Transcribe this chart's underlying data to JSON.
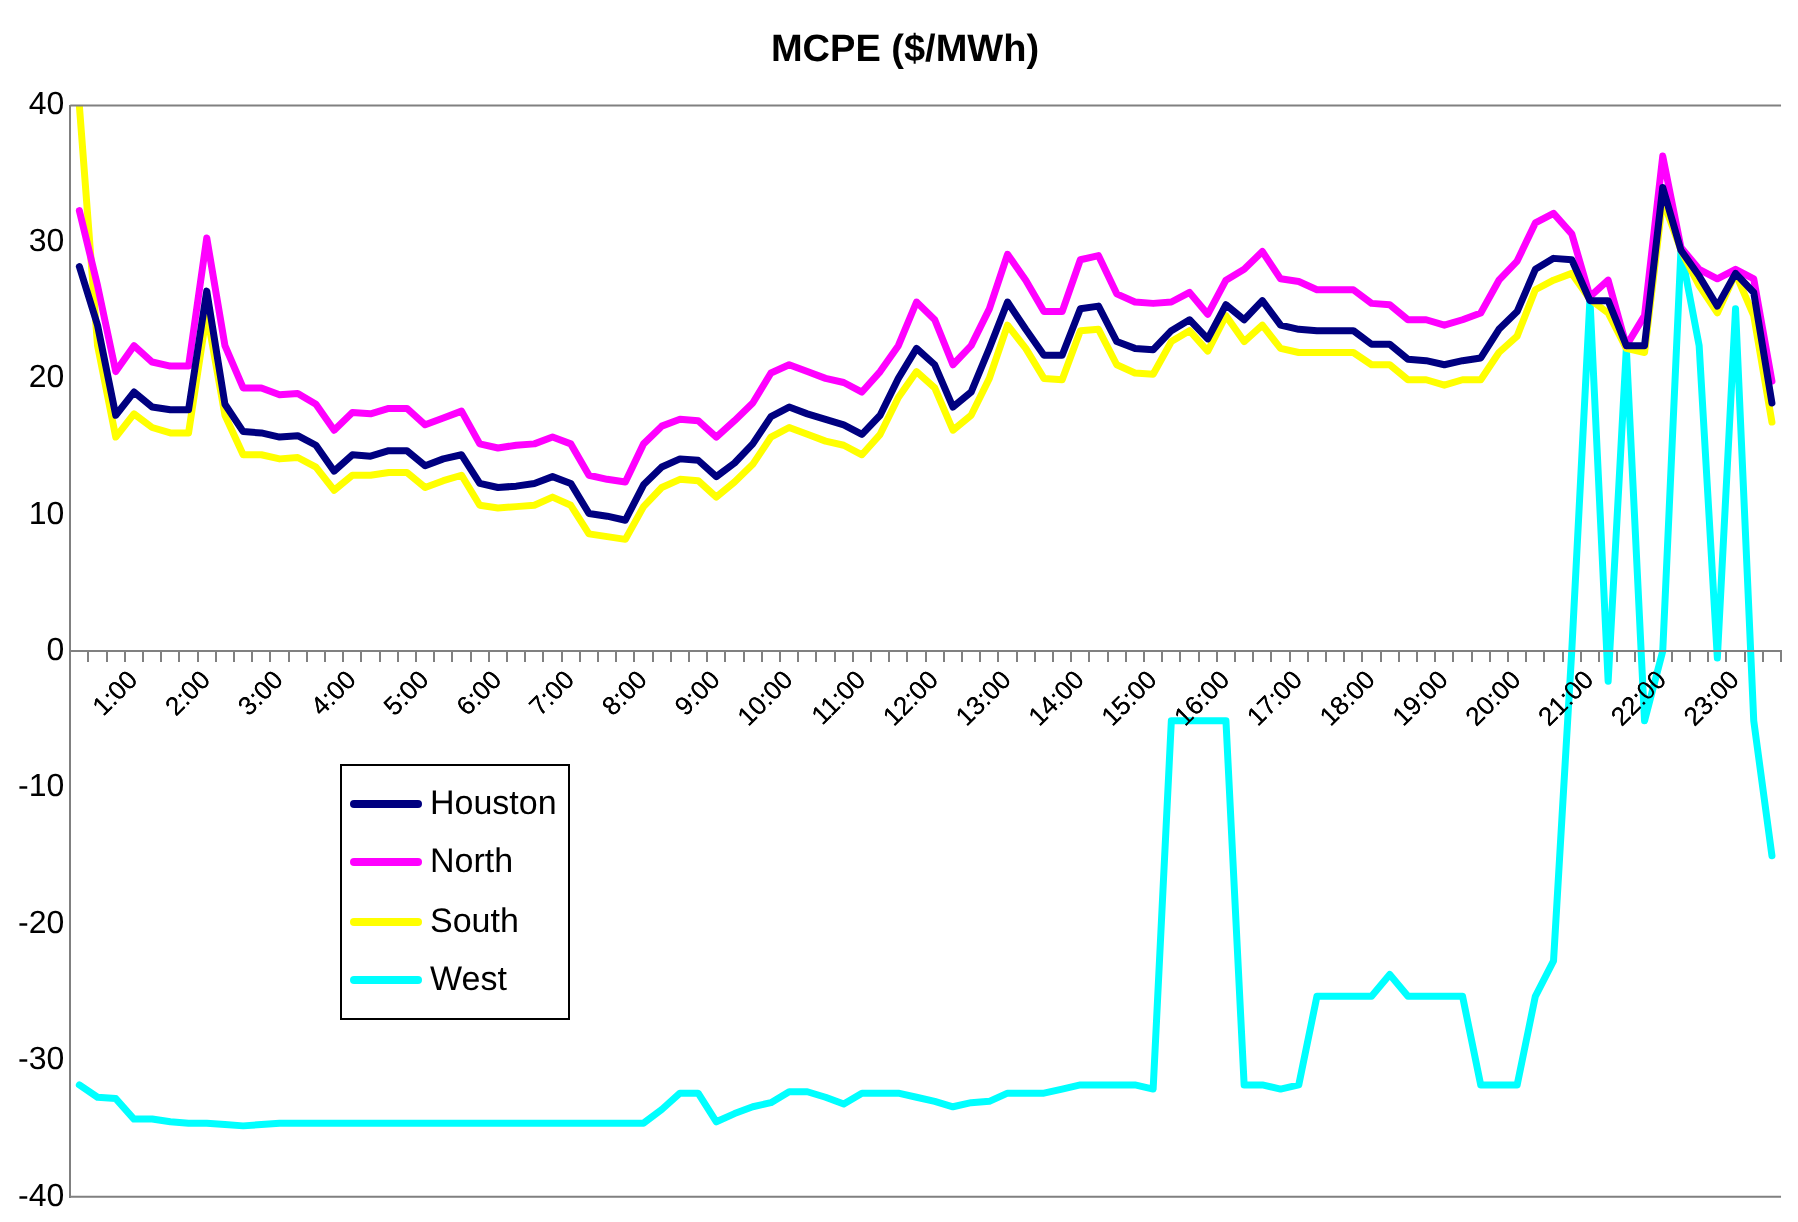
{
  "chart_data": {
    "type": "line",
    "title": "MCPE ($/MWh)",
    "categories": [
      null,
      null,
      null,
      "1:00",
      null,
      null,
      null,
      "2:00",
      null,
      null,
      null,
      "3:00",
      null,
      null,
      null,
      "4:00",
      null,
      null,
      null,
      "5:00",
      null,
      null,
      null,
      "6:00",
      null,
      null,
      null,
      "7:00",
      null,
      null,
      null,
      "8:00",
      null,
      null,
      null,
      "9:00",
      null,
      null,
      null,
      "10:00",
      null,
      null,
      null,
      "11:00",
      null,
      null,
      null,
      "12:00",
      null,
      null,
      null,
      "13:00",
      null,
      null,
      null,
      "14:00",
      null,
      null,
      null,
      "15:00",
      null,
      null,
      null,
      "16:00",
      null,
      null,
      null,
      "17:00",
      null,
      null,
      null,
      "18:00",
      null,
      null,
      null,
      "19:00",
      null,
      null,
      null,
      "20:00",
      null,
      null,
      null,
      "21:00",
      null,
      null,
      null,
      "22:00",
      null,
      null,
      null,
      "23:00",
      null,
      null
    ],
    "series": [
      {
        "name": "Houston",
        "color": "#000080",
        "values": [
          28.2,
          23.9,
          17.3,
          19.0,
          17.9,
          17.7,
          17.7,
          26.4,
          18.1,
          16.1,
          16.0,
          15.7,
          15.8,
          15.1,
          13.2,
          14.4,
          14.3,
          14.7,
          14.7,
          13.6,
          14.1,
          14.4,
          12.3,
          12.0,
          12.1,
          12.3,
          12.8,
          12.3,
          10.1,
          9.9,
          9.6,
          12.2,
          13.5,
          14.1,
          14.0,
          12.8,
          13.8,
          15.2,
          17.2,
          17.9,
          17.4,
          17.0,
          16.6,
          15.9,
          17.3,
          20.0,
          22.2,
          21.0,
          17.9,
          19.0,
          22.2,
          25.6,
          23.6,
          21.7,
          21.7,
          25.1,
          25.3,
          22.7,
          22.2,
          22.1,
          23.5,
          24.3,
          22.9,
          25.4,
          24.3,
          25.7,
          23.9,
          23.6,
          23.5,
          23.5,
          23.5,
          22.5,
          22.5,
          21.4,
          21.3,
          21.0,
          21.3,
          21.5,
          23.6,
          24.9,
          28.0,
          28.8,
          28.7,
          25.7,
          25.7,
          22.4,
          22.4,
          34.0,
          29.4,
          27.5,
          25.3,
          27.7,
          26.3,
          18.2
        ]
      },
      {
        "name": "North",
        "color": "#ff00ff",
        "values": [
          32.3,
          26.8,
          20.5,
          22.4,
          21.2,
          20.9,
          20.9,
          30.3,
          22.4,
          19.3,
          19.3,
          18.8,
          18.9,
          18.1,
          16.2,
          17.5,
          17.4,
          17.8,
          17.8,
          16.6,
          17.1,
          17.6,
          15.2,
          14.9,
          15.1,
          15.2,
          15.7,
          15.2,
          12.9,
          12.6,
          12.4,
          15.2,
          16.5,
          17.0,
          16.9,
          15.7,
          16.9,
          18.2,
          20.4,
          21.0,
          20.5,
          20.0,
          19.7,
          19.0,
          20.5,
          22.4,
          25.6,
          24.3,
          21.0,
          22.4,
          25.1,
          29.1,
          27.2,
          24.9,
          24.9,
          28.7,
          29.0,
          26.2,
          25.6,
          25.5,
          25.6,
          26.3,
          24.7,
          27.2,
          28.0,
          29.3,
          27.3,
          27.1,
          26.5,
          26.5,
          26.5,
          25.5,
          25.4,
          24.3,
          24.3,
          23.9,
          24.3,
          24.8,
          27.2,
          28.6,
          31.4,
          32.1,
          30.6,
          26.0,
          27.2,
          22.4,
          24.6,
          36.3,
          29.6,
          28.0,
          27.3,
          28.0,
          27.3,
          19.8
        ]
      },
      {
        "name": "South",
        "color": "#ffff00",
        "values": [
          40,
          22.4,
          15.7,
          17.4,
          16.4,
          16.0,
          16.0,
          24.8,
          17.3,
          14.4,
          14.4,
          14.1,
          14.2,
          13.5,
          11.8,
          12.9,
          12.9,
          13.1,
          13.1,
          12.0,
          12.5,
          12.9,
          10.7,
          10.5,
          10.6,
          10.7,
          11.3,
          10.7,
          8.6,
          8.4,
          8.2,
          10.6,
          12.0,
          12.6,
          12.5,
          11.3,
          12.4,
          13.7,
          15.7,
          16.4,
          15.9,
          15.4,
          15.1,
          14.4,
          15.9,
          18.6,
          20.5,
          19.3,
          16.2,
          17.3,
          20.0,
          23.9,
          22.2,
          20.0,
          19.9,
          23.5,
          23.6,
          21.0,
          20.4,
          20.3,
          22.7,
          23.5,
          22.0,
          24.6,
          22.7,
          23.9,
          22.2,
          21.9,
          21.9,
          21.9,
          21.9,
          21.0,
          21.0,
          19.9,
          19.9,
          19.5,
          19.9,
          19.9,
          21.9,
          23.1,
          26.5,
          27.2,
          27.7,
          25.8,
          24.8,
          22.2,
          21.9,
          33.1,
          29.4,
          26.8,
          24.8,
          27.7,
          24.6,
          16.8
        ]
      },
      {
        "name": "West",
        "color": "#00ffff",
        "values": [
          -31.8,
          -32.7,
          -32.8,
          -34.3,
          -34.3,
          -34.5,
          -34.6,
          -34.6,
          -34.7,
          -34.8,
          -34.7,
          -34.6,
          -34.6,
          -34.6,
          -34.6,
          -34.6,
          -34.6,
          -34.6,
          -34.6,
          -34.6,
          -34.6,
          -34.6,
          -34.6,
          -34.6,
          -34.6,
          -34.6,
          -34.6,
          -34.6,
          -34.6,
          -34.6,
          -34.6,
          -34.6,
          -33.6,
          -32.4,
          -32.4,
          -34.5,
          -33.9,
          -33.4,
          -33.1,
          -32.3,
          -32.3,
          -32.7,
          -33.2,
          -32.4,
          -32.4,
          -32.4,
          -32.7,
          -33.0,
          -33.4,
          -33.1,
          -33.0,
          -32.4,
          -32.4,
          -32.4,
          -32.1,
          -31.8,
          -31.8,
          -31.8,
          -31.8,
          -32.1,
          -5.1,
          -5.1,
          -5.1,
          -5.1,
          -31.8,
          -31.8,
          -32.1,
          -31.8,
          -25.3,
          -25.3,
          -25.3,
          -25.3,
          -23.7,
          -25.3,
          -25.3,
          -25.3,
          -25.3,
          -31.8,
          -31.8,
          -31.8,
          -25.3,
          -22.7,
          0,
          25.8,
          -2.2,
          22.2,
          -5.1,
          0,
          29.4,
          22.4,
          -0.5,
          25.1,
          -5.1,
          -15
        ]
      }
    ],
    "ylim": [
      -40,
      40
    ],
    "yticks": [
      -40,
      -30,
      -20,
      -10,
      0,
      10,
      20,
      30,
      40
    ],
    "grid": false,
    "legend": "bottom left",
    "marker": "none",
    "line_style": "solid"
  }
}
